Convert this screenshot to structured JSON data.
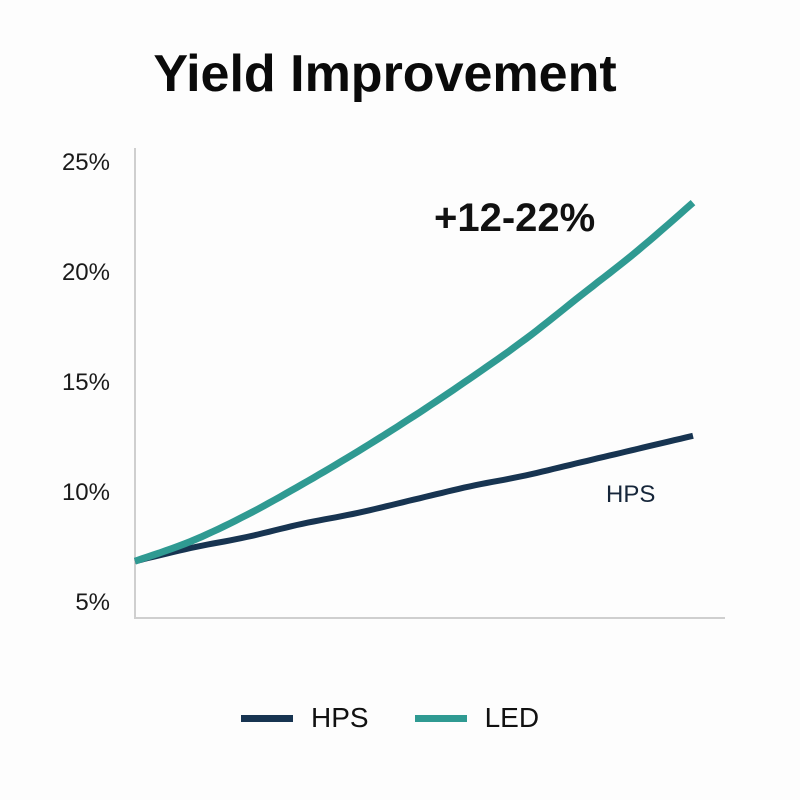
{
  "title": "Yield Improvement",
  "annotation": "+12-22%",
  "inline_label": "HPS",
  "y_ticks": [
    "25%",
    "20%",
    "15%",
    "10%",
    "5%"
  ],
  "legend": [
    {
      "label": "HPS",
      "color": "#173451"
    },
    {
      "label": "LED",
      "color": "#2f9a92"
    }
  ],
  "colors": {
    "hps": "#173451",
    "led": "#2f9a92",
    "axis": "#cccccc"
  },
  "chart_data": {
    "type": "line",
    "title": "Yield Improvement",
    "xlabel": "",
    "ylabel": "",
    "ylim": [
      5,
      25
    ],
    "yticks": [
      5,
      10,
      15,
      20,
      25
    ],
    "x": [
      0,
      0.1,
      0.2,
      0.3,
      0.4,
      0.5,
      0.6,
      0.7,
      0.8,
      0.9,
      1.0
    ],
    "series": [
      {
        "name": "HPS",
        "color": "#173451",
        "values": [
          6.9,
          7.5,
          8.0,
          8.6,
          9.1,
          9.7,
          10.3,
          10.8,
          11.4,
          12.0,
          12.6
        ]
      },
      {
        "name": "LED",
        "color": "#2f9a92",
        "values": [
          6.9,
          7.8,
          9.0,
          10.4,
          11.9,
          13.5,
          15.2,
          17.0,
          19.0,
          21.0,
          23.2
        ]
      }
    ],
    "annotations": [
      {
        "text": "+12-22%",
        "near": "LED end"
      },
      {
        "text": "HPS",
        "near": "HPS end"
      }
    ],
    "grid": false,
    "legend_position": "bottom"
  }
}
